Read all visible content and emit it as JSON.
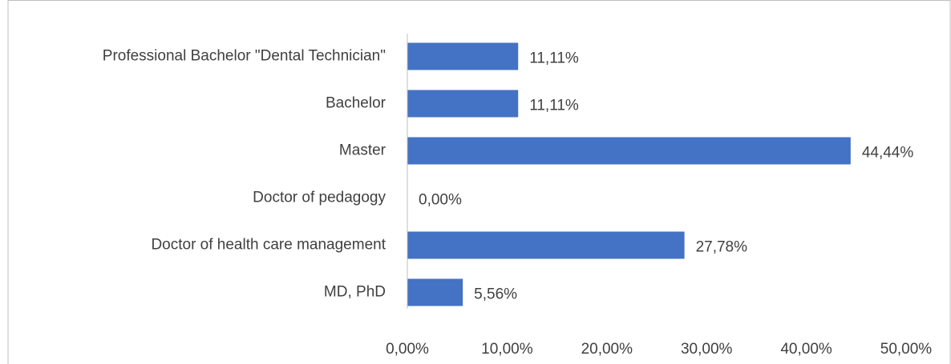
{
  "chart_data": {
    "type": "bar",
    "orientation": "horizontal",
    "categories": [
      "Professional Bachelor \"Dental Technician\"",
      "Bachelor",
      "Master",
      "Doctor of pedagogy",
      "Doctor of health care management",
      "MD, PhD"
    ],
    "values": [
      11.11,
      11.11,
      44.44,
      0,
      27.78,
      5.56
    ],
    "value_labels": [
      "11,11%",
      "11,11%",
      "44,44%",
      "0,00%",
      "27,78%",
      "5,56%"
    ],
    "color": "#4472c4",
    "xlim": [
      0,
      50
    ],
    "xticks": [
      {
        "value": 0,
        "label": "0,00%"
      },
      {
        "value": 10,
        "label": "10,00%"
      },
      {
        "value": 20,
        "label": "20,00%"
      },
      {
        "value": 30,
        "label": "30,00%"
      },
      {
        "value": 40,
        "label": "40,00%"
      },
      {
        "value": 50,
        "label": "50,00%"
      }
    ],
    "grid": false
  }
}
